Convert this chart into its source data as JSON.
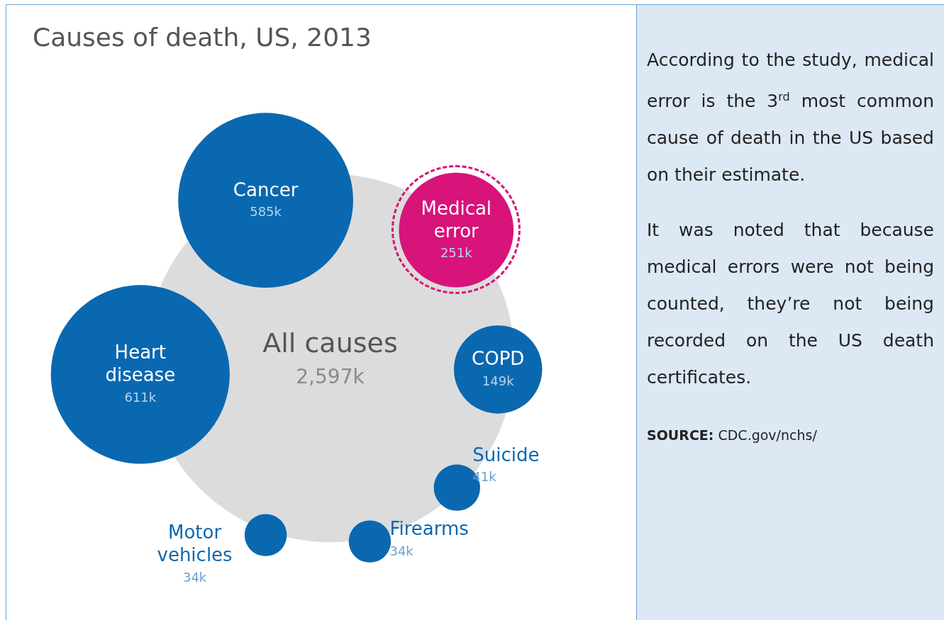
{
  "chart_data": {
    "type": "other",
    "title": "Causes of death, US, 2013",
    "categories": [
      "All causes",
      "Heart disease",
      "Cancer",
      "Medical error",
      "COPD",
      "Suicide",
      "Firearms",
      "Motor vehicles"
    ],
    "values": [
      2597,
      611,
      585,
      251,
      149,
      41,
      34,
      34
    ],
    "value_labels": [
      "2,597k",
      "611k",
      "585k",
      "251k",
      "149k",
      "41k",
      "34k",
      "34k"
    ],
    "colors": [
      "#dcdcdc",
      "#0a68b0",
      "#0a68b0",
      "#d8137a",
      "#0a68b0",
      "#0a68b0",
      "#0a68b0",
      "#0a68b0"
    ],
    "annotations": [
      "According to the study, medical error is the 3$^{rd}$ most common cause of death in the US based on their estimate.",
      "It was noted that because medical errors were not being counted, they’re not being recorded on the US death certificates.",
      "SOURCE: CDC.gov/nchs/"
    ]
  }
}
